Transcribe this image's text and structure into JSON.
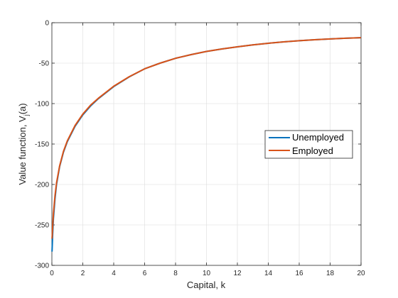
{
  "chart_data": {
    "type": "line",
    "xlabel": "Capital, k",
    "ylabel": "Value function, V",
    "ylabel_sub": "j",
    "ylabel_tail": "(a)",
    "xlim": [
      0,
      20
    ],
    "ylim": [
      -300,
      0
    ],
    "xticks": [
      0,
      2,
      4,
      6,
      8,
      10,
      12,
      14,
      16,
      18,
      20
    ],
    "yticks": [
      0,
      -50,
      -100,
      -150,
      -200,
      -250,
      -300
    ],
    "grid": true,
    "legend_position": "center-right",
    "series": [
      {
        "name": "Unemployed",
        "color": "#0072BD",
        "x": [
          0.01,
          0.05,
          0.1,
          0.2,
          0.3,
          0.5,
          0.75,
          1.0,
          1.5,
          2.0,
          2.5,
          3.0,
          4.0,
          5.0,
          6.0,
          7.0,
          8.0,
          9.0,
          10.0,
          11.0,
          12.0,
          13.0,
          14.0,
          15.0,
          16.0,
          17.0,
          18.0,
          19.0,
          20.0
        ],
        "y": [
          -283,
          -262,
          -242,
          -218,
          -200,
          -178,
          -160,
          -147,
          -128,
          -114,
          -103,
          -94,
          -79,
          -67,
          -57,
          -50,
          -44,
          -39.5,
          -35.5,
          -32.5,
          -29.8,
          -27.4,
          -25.4,
          -23.7,
          -22.3,
          -21.1,
          -20.1,
          -19.2,
          -18.5
        ]
      },
      {
        "name": "Employed",
        "color": "#D95319",
        "x": [
          0.01,
          0.05,
          0.1,
          0.2,
          0.3,
          0.5,
          0.75,
          1.0,
          1.5,
          2.0,
          2.5,
          3.0,
          4.0,
          5.0,
          6.0,
          7.0,
          8.0,
          9.0,
          10.0,
          11.0,
          12.0,
          13.0,
          14.0,
          15.0,
          16.0,
          17.0,
          18.0,
          19.0,
          20.0
        ],
        "y": [
          -267,
          -253,
          -236,
          -214,
          -198,
          -177,
          -159,
          -146,
          -127,
          -113,
          -102,
          -93.5,
          -78.5,
          -66.8,
          -57,
          -50,
          -44,
          -39.5,
          -35.5,
          -32.5,
          -29.8,
          -27.4,
          -25.4,
          -23.7,
          -22.3,
          -21.1,
          -20.1,
          -19.2,
          -18.5
        ]
      }
    ]
  }
}
